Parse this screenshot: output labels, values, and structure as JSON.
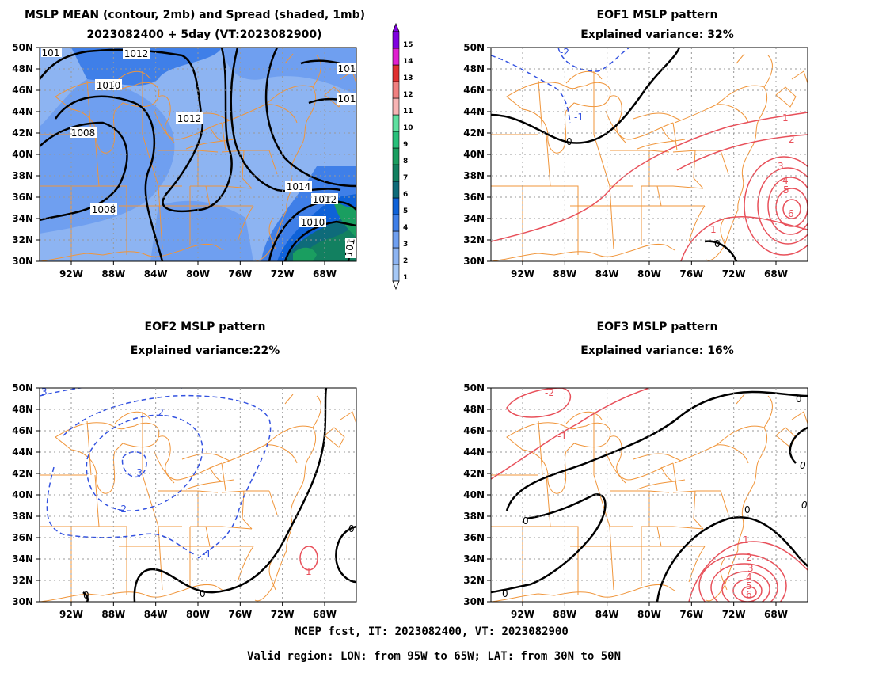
{
  "figure_footer": [
    "NCEP fcst, IT: 2023082400, VT: 2023082900",
    "Valid region: LON: from 95W to 65W; LAT: from 30N to 50N"
  ],
  "colors": {
    "map_lines": "#f0953a",
    "positive_contour": "#e8505a",
    "negative_contour": "#3352e0",
    "zero_contour": "#000000",
    "grid": "#999999"
  },
  "lat_ticks": [
    "50N",
    "48N",
    "46N",
    "44N",
    "42N",
    "40N",
    "38N",
    "36N",
    "34N",
    "32N",
    "30N"
  ],
  "lon_ticks": [
    "92W",
    "88W",
    "84W",
    "80W",
    "76W",
    "72W",
    "68W"
  ],
  "colorbar": {
    "levels": [
      "1",
      "2",
      "3",
      "4",
      "5",
      "6",
      "7",
      "8",
      "9",
      "10",
      "11",
      "12",
      "13",
      "14",
      "15"
    ],
    "colors": [
      "#a6c8f5",
      "#8db4f2",
      "#6f9ff0",
      "#3f7fe8",
      "#0f62d8",
      "#0e6b7a",
      "#128060",
      "#1a9e60",
      "#28c07a",
      "#5fe0a0",
      "#f7b4b4",
      "#f08080",
      "#e03030",
      "#e020d0",
      "#8000e0"
    ]
  },
  "panels": [
    {
      "id": "mean",
      "title_lines": [
        "MSLP MEAN (contour, 2mb) and Spread (shaded, 1mb)",
        "2023082400 + 5day (VT:2023082900)"
      ],
      "contour_labels": [
        "1010",
        "1012",
        "1010",
        "1008",
        "1012",
        "1014",
        "1012",
        "1010",
        "1008",
        "101",
        "101",
        "101",
        "101"
      ]
    },
    {
      "id": "eof1",
      "title_lines": [
        "EOF1 MSLP pattern",
        "Explained variance: 32%"
      ],
      "contour_labels": [
        "-2",
        "-1",
        "0",
        "1",
        "2",
        "3",
        "4",
        "5",
        "6",
        "1",
        "0"
      ]
    },
    {
      "id": "eof2",
      "title_lines": [
        "EOF2 MSLP pattern",
        "Explained variance:22%"
      ],
      "contour_labels": [
        "-2",
        "-3",
        "-2",
        "-1",
        "0",
        "0",
        "0",
        "1",
        "3"
      ]
    },
    {
      "id": "eof3",
      "title_lines": [
        "EOF3 MSLP pattern",
        "Explained variance: 16%"
      ],
      "contour_labels": [
        "-2",
        "-1",
        "0",
        "0",
        "0",
        "1",
        "2",
        "3",
        "4",
        "5",
        "6",
        "0",
        "0",
        "0"
      ]
    }
  ]
}
